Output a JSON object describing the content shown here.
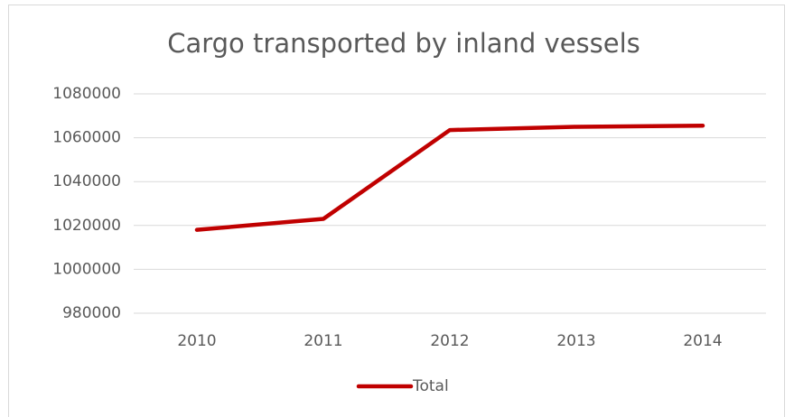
{
  "chart_data": {
    "type": "line",
    "title": "Cargo transported by inland vessels",
    "categories": [
      "2010",
      "2011",
      "2012",
      "2013",
      "2014"
    ],
    "series": [
      {
        "name": "Total",
        "color": "#c00000",
        "values": [
          1018000,
          1023000,
          1063500,
          1065000,
          1065500
        ]
      }
    ],
    "ylim": [
      980000,
      1080000
    ],
    "yticks": [
      980000,
      1000000,
      1020000,
      1040000,
      1060000,
      1080000
    ],
    "grid": true,
    "legend": "bottom"
  }
}
